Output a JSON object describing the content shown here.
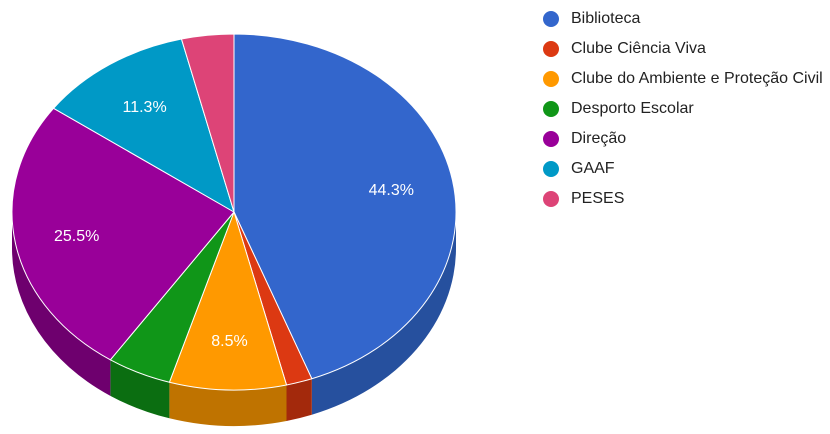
{
  "chart_data": {
    "type": "pie",
    "three_d": true,
    "legend_position": "right",
    "start_angle_deg": 0,
    "direction": "clockwise",
    "slices": [
      {
        "label": "Biblioteca",
        "value": 44.3,
        "color": "#3366cc",
        "side_color": "#26509e",
        "data_label": "44.3%"
      },
      {
        "label": "Clube Ciência Viva",
        "value": 1.9,
        "color": "#dc3912",
        "side_color": "#a3290c",
        "data_label": ""
      },
      {
        "label": "Clube do Ambiente e Proteção Civil",
        "value": 8.5,
        "color": "#ff9900",
        "side_color": "#bf7300",
        "data_label": "8.5%"
      },
      {
        "label": "Desporto Escolar",
        "value": 4.7,
        "color": "#109618",
        "side_color": "#0b6e11",
        "data_label": ""
      },
      {
        "label": "Direção",
        "value": 25.5,
        "color": "#990099",
        "side_color": "#6e006e",
        "data_label": "25.5%"
      },
      {
        "label": "GAAF",
        "value": 11.3,
        "color": "#0099c6",
        "side_color": "#007294",
        "data_label": "11.3%"
      },
      {
        "label": "PESES",
        "value": 3.8,
        "color": "#dd4477",
        "side_color": "#a63359",
        "data_label": ""
      }
    ]
  }
}
